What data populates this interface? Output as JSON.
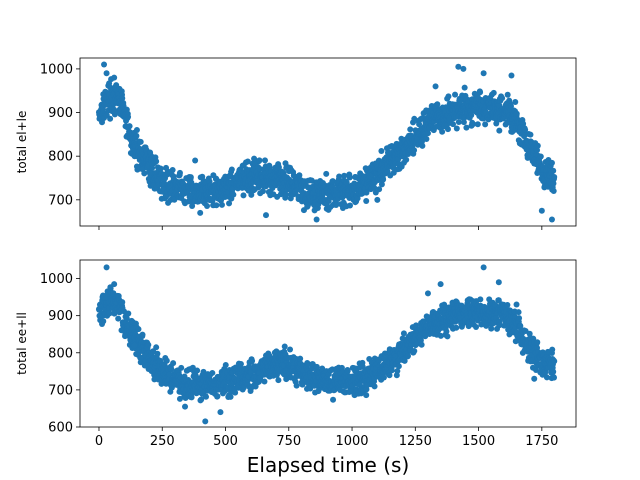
{
  "chart_data": [
    {
      "type": "scatter",
      "ylabel": "total el+le",
      "xlim": [
        -75,
        1885
      ],
      "ylim": [
        640,
        1025
      ],
      "yticks": [
        700,
        800,
        900,
        1000
      ],
      "xticks": [
        0,
        250,
        500,
        750,
        1000,
        1250,
        1500,
        1750
      ],
      "show_xtick_labels": false,
      "color": "#1f77b4",
      "anchors": [
        [
          0,
          900
        ],
        [
          40,
          935
        ],
        [
          90,
          920
        ],
        [
          130,
          830
        ],
        [
          200,
          775
        ],
        [
          260,
          735
        ],
        [
          350,
          720
        ],
        [
          450,
          715
        ],
        [
          550,
          745
        ],
        [
          650,
          750
        ],
        [
          760,
          745
        ],
        [
          820,
          715
        ],
        [
          900,
          715
        ],
        [
          1000,
          720
        ],
        [
          1100,
          760
        ],
        [
          1200,
          815
        ],
        [
          1300,
          875
        ],
        [
          1400,
          905
        ],
        [
          1500,
          915
        ],
        [
          1600,
          905
        ],
        [
          1650,
          880
        ],
        [
          1700,
          820
        ],
        [
          1760,
          760
        ],
        [
          1800,
          740
        ]
      ],
      "outliers": [
        [
          20,
          1010
        ],
        [
          30,
          990
        ],
        [
          60,
          980
        ],
        [
          150,
          860
        ],
        [
          400,
          670
        ],
        [
          660,
          665
        ],
        [
          860,
          655
        ],
        [
          1420,
          1005
        ],
        [
          1440,
          1000
        ],
        [
          1520,
          990
        ],
        [
          1630,
          985
        ],
        [
          1750,
          675
        ],
        [
          1790,
          655
        ],
        [
          1100,
          700
        ],
        [
          380,
          790
        ],
        [
          1330,
          960
        ],
        [
          1570,
          875
        ]
      ],
      "n": 1800,
      "noise": 25,
      "seed": 17
    },
    {
      "type": "scatter",
      "ylabel": "total ee+ll",
      "xlabel": "Elapsed time (s)",
      "xlim": [
        -75,
        1885
      ],
      "ylim": [
        600,
        1050
      ],
      "yticks": [
        600,
        700,
        800,
        900,
        1000
      ],
      "xticks": [
        0,
        250,
        500,
        750,
        1000,
        1250,
        1500,
        1750
      ],
      "xtick_labels": [
        "0",
        "250",
        "500",
        "750",
        "1000",
        "1250",
        "1500",
        "1750"
      ],
      "show_xtick_labels": true,
      "color": "#1f77b4",
      "anchors": [
        [
          0,
          905
        ],
        [
          40,
          940
        ],
        [
          80,
          925
        ],
        [
          120,
          860
        ],
        [
          180,
          805
        ],
        [
          250,
          750
        ],
        [
          330,
          720
        ],
        [
          420,
          710
        ],
        [
          520,
          725
        ],
        [
          620,
          745
        ],
        [
          720,
          775
        ],
        [
          800,
          745
        ],
        [
          880,
          720
        ],
        [
          980,
          725
        ],
        [
          1080,
          740
        ],
        [
          1160,
          780
        ],
        [
          1220,
          820
        ],
        [
          1300,
          870
        ],
        [
          1400,
          905
        ],
        [
          1500,
          905
        ],
        [
          1600,
          900
        ],
        [
          1650,
          870
        ],
        [
          1700,
          810
        ],
        [
          1760,
          770
        ],
        [
          1800,
          770
        ]
      ],
      "outliers": [
        [
          30,
          1030
        ],
        [
          60,
          985
        ],
        [
          140,
          820
        ],
        [
          340,
          655
        ],
        [
          420,
          615
        ],
        [
          480,
          640
        ],
        [
          1520,
          1030
        ],
        [
          1580,
          990
        ],
        [
          1650,
          930
        ],
        [
          1720,
          730
        ],
        [
          1300,
          960
        ],
        [
          1350,
          985
        ]
      ],
      "n": 1800,
      "noise": 27,
      "seed": 29
    }
  ]
}
